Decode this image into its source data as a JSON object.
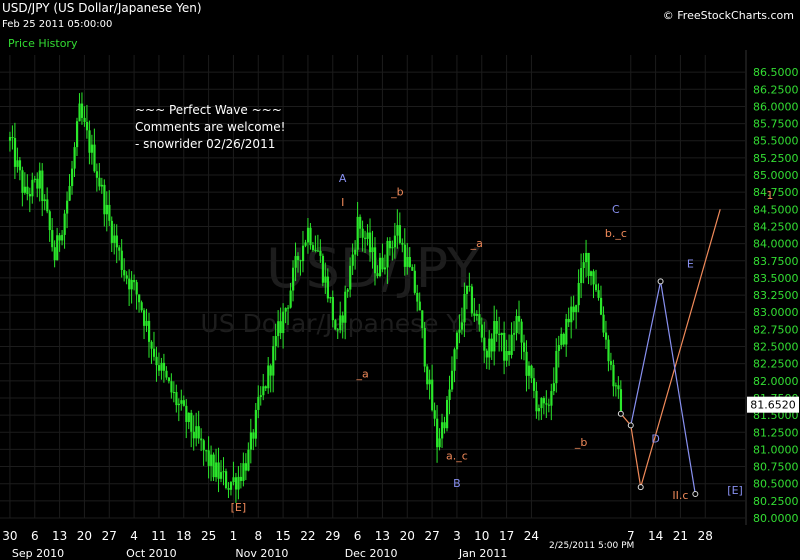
{
  "header": {
    "title": "USD/JPY (US Dollar/Japanese Yen)",
    "date": "Feb 25 2011 05:00:00",
    "panel_label": "Price History",
    "copyright": "© FreeStockCharts.com",
    "bottom_timestamp": "2/25/2011 5:00 PM"
  },
  "comment": {
    "line1": "~~~ Perfect Wave ~~~",
    "line2": "Comments are welcome!",
    "line3": "- snowrider  02/26/2011"
  },
  "watermark": {
    "symbol": "USD/JPY",
    "name": "US Dollar/Japanese Yen"
  },
  "colors": {
    "background": "#000000",
    "candle": "#2be82b",
    "axis_text": "#33dd33",
    "grid": "#1c1c1c",
    "label_orange": "#f08a5a",
    "label_blue": "#8890f0",
    "current_price_box": "#ffffff"
  },
  "chart_data": {
    "type": "candlestick",
    "title": "USD/JPY (US Dollar/Japanese Yen)",
    "ylim": [
      80.0,
      86.75
    ],
    "y_ticks": [
      "80.0000",
      "80.2500",
      "80.5000",
      "80.7500",
      "81.0000",
      "81.2500",
      "81.5000",
      "81.7500",
      "82.0000",
      "82.2500",
      "82.5000",
      "82.7500",
      "83.0000",
      "83.2500",
      "83.5000",
      "83.7500",
      "84.0000",
      "84.2500",
      "84.5000",
      "84.7500",
      "85.0000",
      "85.2500",
      "85.5000",
      "85.7500",
      "86.0000",
      "86.2500",
      "86.5000"
    ],
    "current_price": "81.6520",
    "x_day_ticks": [
      {
        "label": "30",
        "t": 0
      },
      {
        "label": "6",
        "t": 5
      },
      {
        "label": "13",
        "t": 10
      },
      {
        "label": "20",
        "t": 15
      },
      {
        "label": "27",
        "t": 20
      },
      {
        "label": "4",
        "t": 25
      },
      {
        "label": "11",
        "t": 30
      },
      {
        "label": "18",
        "t": 35
      },
      {
        "label": "25",
        "t": 40
      },
      {
        "label": "1",
        "t": 45
      },
      {
        "label": "8",
        "t": 50
      },
      {
        "label": "15",
        "t": 55
      },
      {
        "label": "22",
        "t": 60
      },
      {
        "label": "29",
        "t": 65
      },
      {
        "label": "6",
        "t": 70
      },
      {
        "label": "13",
        "t": 75
      },
      {
        "label": "20",
        "t": 80
      },
      {
        "label": "27",
        "t": 85
      },
      {
        "label": "3",
        "t": 90
      },
      {
        "label": "10",
        "t": 95
      },
      {
        "label": "17",
        "t": 100
      },
      {
        "label": "24",
        "t": 105
      },
      {
        "label": "7",
        "t": 125
      },
      {
        "label": "14",
        "t": 130
      },
      {
        "label": "21",
        "t": 135
      },
      {
        "label": "28",
        "t": 140
      }
    ],
    "x_month_ticks": [
      {
        "label": "Sep 2010",
        "t": 0
      },
      {
        "label": "Oct 2010",
        "t": 23
      },
      {
        "label": "Nov 2010",
        "t": 45
      },
      {
        "label": "Dec 2010",
        "t": 67
      },
      {
        "label": "Jan 2011",
        "t": 90
      }
    ],
    "price_path": [
      [
        0,
        85.5
      ],
      [
        3,
        84.7
      ],
      [
        6,
        84.9
      ],
      [
        9,
        83.8
      ],
      [
        12,
        84.8
      ],
      [
        14,
        85.9
      ],
      [
        17,
        85.2
      ],
      [
        20,
        84.3
      ],
      [
        23,
        83.6
      ],
      [
        26,
        83.2
      ],
      [
        29,
        82.4
      ],
      [
        32,
        81.9
      ],
      [
        35,
        81.5
      ],
      [
        38,
        81.1
      ],
      [
        41,
        80.7
      ],
      [
        44,
        80.5
      ],
      [
        46,
        80.6
      ],
      [
        48,
        80.9
      ],
      [
        50,
        81.6
      ],
      [
        52,
        82.1
      ],
      [
        54,
        82.7
      ],
      [
        56,
        83.2
      ],
      [
        58,
        83.8
      ],
      [
        60,
        84.2
      ],
      [
        62,
        83.9
      ],
      [
        64,
        83.3
      ],
      [
        66,
        82.6
      ],
      [
        68,
        83.4
      ],
      [
        70,
        84.3
      ],
      [
        72,
        84.0
      ],
      [
        74,
        83.6
      ],
      [
        76,
        83.9
      ],
      [
        78,
        84.2
      ],
      [
        80,
        83.7
      ],
      [
        82,
        83.2
      ],
      [
        84,
        82.1
      ],
      [
        86,
        81.1
      ],
      [
        88,
        81.6
      ],
      [
        90,
        82.6
      ],
      [
        92,
        83.3
      ],
      [
        94,
        82.9
      ],
      [
        96,
        82.4
      ],
      [
        98,
        82.8
      ],
      [
        100,
        82.3
      ],
      [
        102,
        82.9
      ],
      [
        104,
        82.2
      ],
      [
        106,
        81.7
      ],
      [
        108,
        81.5
      ],
      [
        110,
        82.3
      ],
      [
        112,
        82.8
      ],
      [
        114,
        83.2
      ],
      [
        116,
        83.8
      ],
      [
        118,
        83.4
      ],
      [
        120,
        82.6
      ],
      [
        122,
        81.8
      ],
      [
        123,
        81.65
      ]
    ],
    "candle_last_t": 123,
    "wave_orange": [
      [
        123,
        81.52
      ],
      [
        125,
        81.35
      ],
      [
        127,
        80.45
      ],
      [
        143,
        84.5
      ]
    ],
    "wave_blue": [
      [
        125,
        81.35
      ],
      [
        131,
        83.45
      ],
      [
        138,
        80.35
      ]
    ],
    "wave_points": [
      {
        "t": 125,
        "v": 81.35
      },
      {
        "t": 127,
        "v": 80.45
      },
      {
        "t": 131,
        "v": 83.45
      },
      {
        "t": 138,
        "v": 80.35
      },
      {
        "t": 123,
        "v": 81.52
      }
    ],
    "annotations": [
      {
        "text": "A",
        "t": 67,
        "v": 84.9,
        "color": "blue"
      },
      {
        "text": "I",
        "t": 67,
        "v": 84.55,
        "color": "orange"
      },
      {
        "text": "_b",
        "t": 78,
        "v": 84.7,
        "color": "orange"
      },
      {
        "text": "_a",
        "t": 71,
        "v": 82.05,
        "color": "orange"
      },
      {
        "text": "_a",
        "t": 94,
        "v": 83.95,
        "color": "orange"
      },
      {
        "text": "a._c",
        "t": 90,
        "v": 80.85,
        "color": "orange"
      },
      {
        "text": "B",
        "t": 90,
        "v": 80.45,
        "color": "blue"
      },
      {
        "text": "[E]",
        "t": 46,
        "v": 80.1,
        "color": "orange"
      },
      {
        "text": "_b",
        "t": 115,
        "v": 81.05,
        "color": "orange"
      },
      {
        "text": "C",
        "t": 122,
        "v": 84.45,
        "color": "blue"
      },
      {
        "text": "b._c",
        "t": 122,
        "v": 84.1,
        "color": "orange"
      },
      {
        "text": "D",
        "t": 130,
        "v": 81.1,
        "color": "blue"
      },
      {
        "text": "E",
        "t": 137,
        "v": 83.65,
        "color": "blue"
      },
      {
        "text": "II.c",
        "t": 135,
        "v": 80.28,
        "color": "orange"
      },
      {
        "text": "[E]",
        "t": 146,
        "v": 80.35,
        "color": "blue"
      },
      {
        "text": "1",
        "t": 153,
        "v": 84.65,
        "color": "orange"
      }
    ]
  }
}
